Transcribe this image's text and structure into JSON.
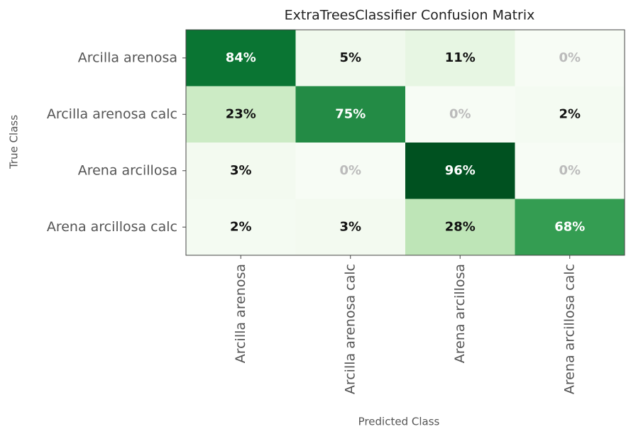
{
  "chart_data": {
    "type": "heatmap",
    "title": "ExtraTreesClassifier Confusion Matrix",
    "x_label": "Predicted Class",
    "y_label": "True Class",
    "columns": [
      "Arcilla arenosa",
      "Arcilla arenosa calc",
      "Arena arcillosa",
      "Arena arcillosa calc"
    ],
    "rows": [
      "Arcilla arenosa",
      "Arcilla arenosa calc",
      "Arena arcillosa",
      "Arena arcillosa calc"
    ],
    "values": [
      [
        84,
        5,
        11,
        0
      ],
      [
        23,
        75,
        0,
        2
      ],
      [
        3,
        0,
        96,
        0
      ],
      [
        2,
        3,
        28,
        68
      ]
    ],
    "value_labels": [
      [
        "84%",
        "5%",
        "11%",
        "0%"
      ],
      [
        "23%",
        "75%",
        "0%",
        "2%"
      ],
      [
        "3%",
        "0%",
        "96%",
        "0%"
      ],
      [
        "2%",
        "3%",
        "28%",
        "68%"
      ]
    ],
    "clim": [
      0,
      100
    ],
    "colorscale": [
      "#f7fcf5",
      "#e5f5e0",
      "#c7e9c0",
      "#a1d99b",
      "#74c476",
      "#41ab5d",
      "#238b45",
      "#006d2c",
      "#00441b"
    ]
  }
}
